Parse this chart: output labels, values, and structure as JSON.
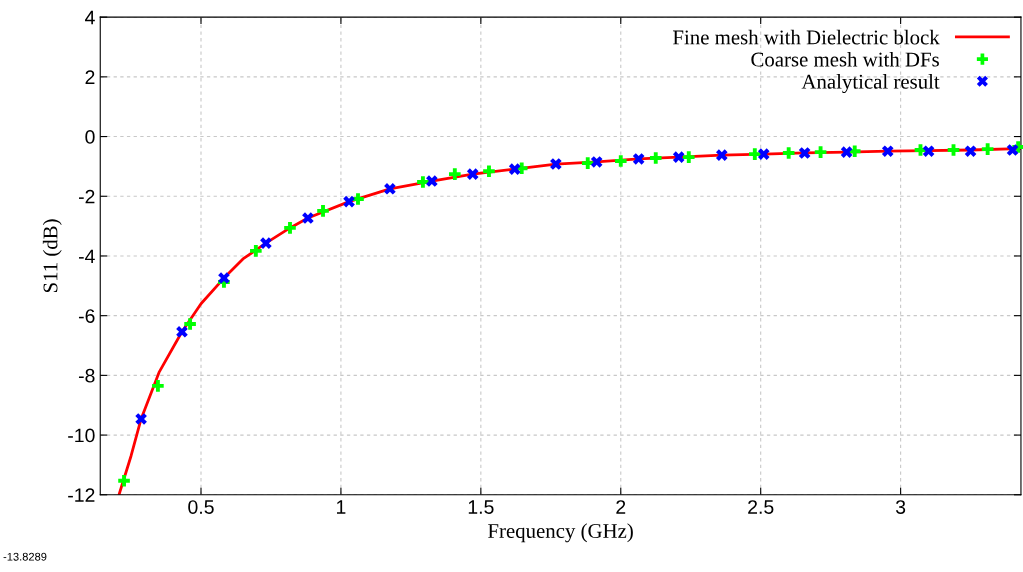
{
  "chart_data": {
    "type": "line",
    "xlabel": "Frequency (GHz)",
    "ylabel": "S11 (dB)",
    "xlim": [
      0.14,
      3.43
    ],
    "ylim": [
      -12,
      4
    ],
    "xticks": [
      0.5,
      1,
      1.5,
      2,
      2.5,
      3
    ],
    "yticks": [
      -12,
      -10,
      -8,
      -6,
      -4,
      -2,
      0,
      2,
      4
    ],
    "grid": true,
    "legend": "top right",
    "annotations": [
      "-13.8289"
    ],
    "series": [
      {
        "name": "Fine mesh with Dielectric block",
        "color": "#ff0000",
        "marker": "none",
        "line_style": "solid",
        "x": [
          0.207,
          0.25,
          0.286,
          0.35,
          0.432,
          0.5,
          0.582,
          0.65,
          0.732,
          0.818,
          0.882,
          1.029,
          1.175,
          1.325,
          1.471,
          1.621,
          1.768,
          1.914,
          2.064,
          2.207,
          2.361,
          2.511,
          2.657,
          2.807,
          2.954,
          3.1,
          3.25,
          3.43
        ],
        "values": [
          -12,
          -10.7,
          -9.46,
          -7.9,
          -6.54,
          -5.6,
          -4.74,
          -4.1,
          -3.57,
          -3.06,
          -2.73,
          -2.18,
          -1.75,
          -1.49,
          -1.26,
          -1.09,
          -0.92,
          -0.85,
          -0.75,
          -0.69,
          -0.62,
          -0.59,
          -0.55,
          -0.52,
          -0.49,
          -0.47,
          -0.45,
          -0.4
        ]
      },
      {
        "name": "Coarse mesh with DFs",
        "type": "scatter",
        "color": "#00ff00",
        "marker": "plus",
        "x": [
          0.225,
          0.346,
          0.461,
          0.582,
          0.696,
          0.818,
          0.936,
          1.061,
          1.293,
          1.407,
          1.529,
          1.646,
          1.882,
          2.0,
          2.125,
          2.243,
          2.479,
          2.6,
          2.714,
          2.836,
          3.071,
          3.189,
          3.311,
          3.42
        ],
        "values": [
          -11.53,
          -8.35,
          -6.28,
          -4.87,
          -3.83,
          -3.06,
          -2.49,
          -2.09,
          -1.52,
          -1.26,
          -1.16,
          -1.06,
          -0.89,
          -0.82,
          -0.72,
          -0.69,
          -0.59,
          -0.55,
          -0.52,
          -0.49,
          -0.45,
          -0.45,
          -0.42,
          -0.35
        ]
      },
      {
        "name": "Analytical result",
        "type": "scatter",
        "color": "#0000ff",
        "marker": "cross",
        "x": [
          0.286,
          0.432,
          0.582,
          0.732,
          0.882,
          1.029,
          1.175,
          1.325,
          1.471,
          1.621,
          1.768,
          1.914,
          2.064,
          2.207,
          2.361,
          2.511,
          2.657,
          2.807,
          2.954,
          3.1,
          3.25,
          3.4
        ],
        "values": [
          -9.46,
          -6.54,
          -4.74,
          -3.57,
          -2.73,
          -2.18,
          -1.75,
          -1.49,
          -1.26,
          -1.09,
          -0.92,
          -0.85,
          -0.75,
          -0.69,
          -0.62,
          -0.59,
          -0.55,
          -0.52,
          -0.49,
          -0.49,
          -0.49,
          -0.45
        ]
      }
    ]
  }
}
